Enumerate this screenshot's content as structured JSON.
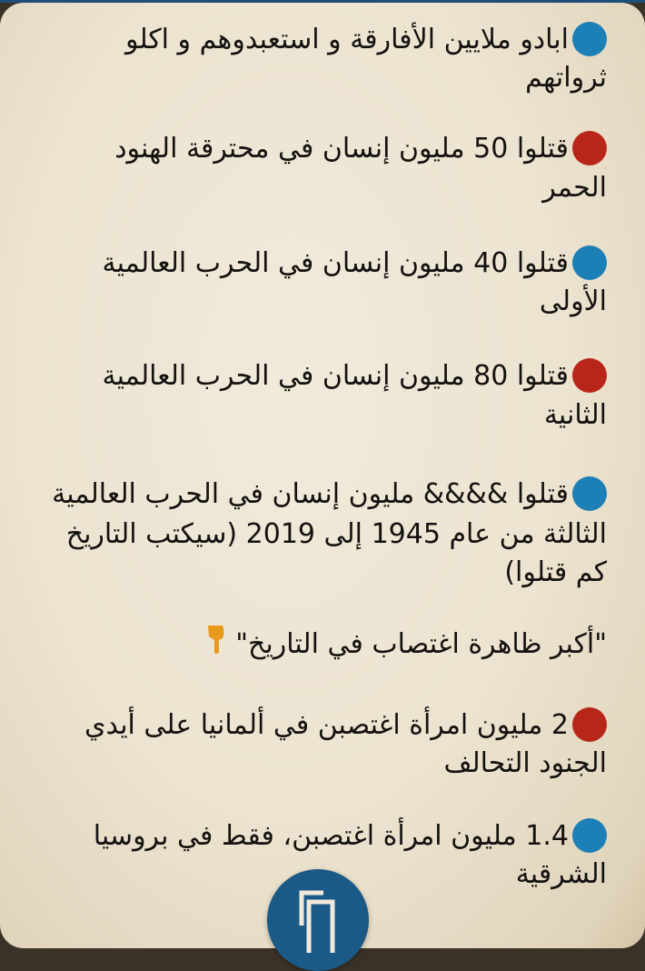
{
  "colors": {
    "blue_bullet": "#1c7fb5",
    "red_bullet": "#b8261a",
    "fab": "#1b5a86",
    "hand": "#e79a1c"
  },
  "items": [
    {
      "bullet": "blue",
      "lines": [
        "ابادو ملايين الأفارقة و استعبدوهم و اكلو",
        "ثرواتهم"
      ]
    },
    {
      "bullet": "red",
      "lines": [
        "قتلوا 50 مليون إنسان في محترقة الهنود",
        "الحمر"
      ]
    },
    {
      "bullet": "blue",
      "lines": [
        "قتلوا 40 مليون إنسان في الحرب العالمية",
        "الأولى"
      ]
    },
    {
      "bullet": "red",
      "lines": [
        "قتلوا 80 مليون إنسان في الحرب العالمية",
        "الثانية"
      ]
    },
    {
      "bullet": "blue",
      "lines": [
        "قتلوا &&&& مليون إنسان في الحرب العالمية",
        "الثالثة من عام 1945 إلى 2019 (سيكتب التاريخ",
        "كم قتلوا)"
      ]
    },
    {
      "bullet": "",
      "lines": [
        "\"أكبر ظاهرة اغتصاب في التاريخ\""
      ],
      "icon": "pointing-down-hand"
    },
    {
      "bullet": "red",
      "lines": [
        "2 مليون امرأة اغتصبن في ألمانيا على أيدي",
        "الجنود التحالف"
      ]
    },
    {
      "bullet": "blue",
      "lines": [
        "1.4 مليون امرأة اغتصبن، فقط في بروسيا",
        "الشرقية"
      ]
    }
  ],
  "fab": {
    "icon": "copy-icon"
  }
}
